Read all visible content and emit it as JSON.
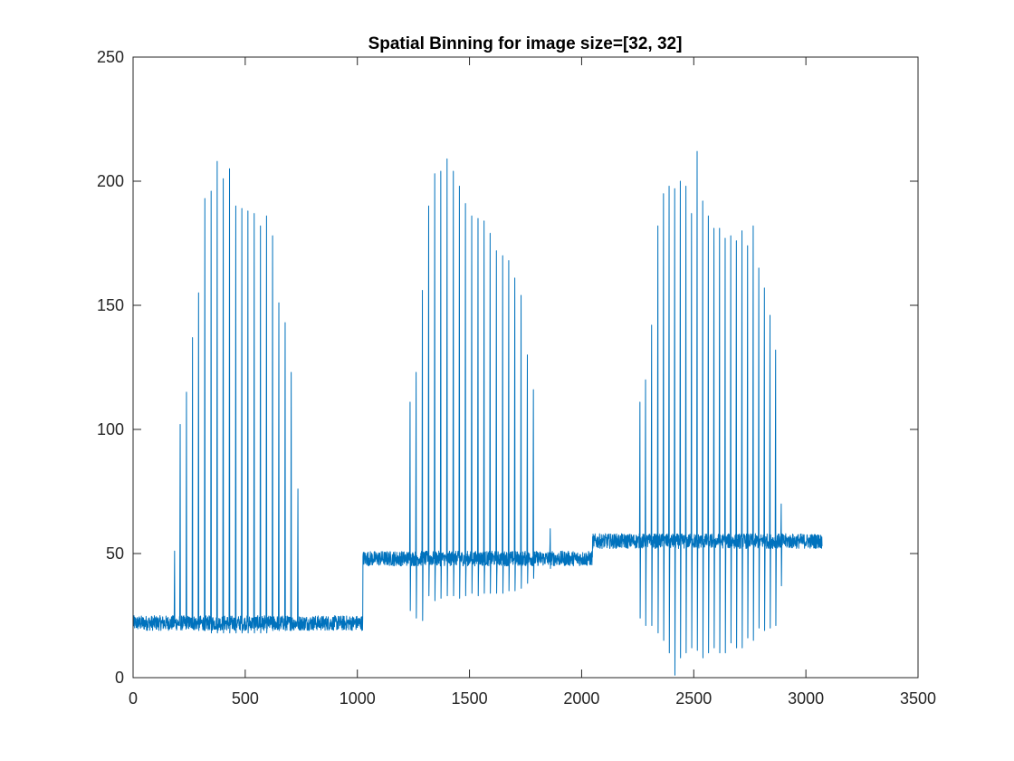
{
  "chart_data": {
    "type": "line",
    "title": "Spatial Binning for image size=[32, 32]",
    "xlabel": "",
    "ylabel": "",
    "xlim": [
      0,
      3500
    ],
    "ylim": [
      0,
      250
    ],
    "xticks": [
      0,
      500,
      1000,
      1500,
      2000,
      2500,
      3000,
      3500
    ],
    "yticks": [
      0,
      50,
      100,
      150,
      200,
      250
    ],
    "xtick_labels": [
      "0",
      "500",
      "1000",
      "1500",
      "2000",
      "2500",
      "3000",
      "3500"
    ],
    "ytick_labels": [
      "0",
      "50",
      "100",
      "150",
      "200",
      "250"
    ],
    "grid": false,
    "legend": "none",
    "colors": {
      "series": "#0072BD",
      "axes": "#262626",
      "background": "#ffffff"
    },
    "series": [
      {
        "color": "#0072BD",
        "x_range": [
          1,
          3072
        ],
        "segments": [
          {
            "x_start": 1,
            "x_end": 1024,
            "baseline": 22,
            "noise": 3,
            "spikes": [
              {
                "x": 185,
                "peak": 51,
                "trough": 22
              },
              {
                "x": 210,
                "peak": 102,
                "trough": 21
              },
              {
                "x": 238,
                "peak": 115,
                "trough": 20
              },
              {
                "x": 265,
                "peak": 137,
                "trough": 20
              },
              {
                "x": 292,
                "peak": 155,
                "trough": 19
              },
              {
                "x": 320,
                "peak": 193,
                "trough": 19
              },
              {
                "x": 348,
                "peak": 196,
                "trough": 18
              },
              {
                "x": 375,
                "peak": 208,
                "trough": 18
              },
              {
                "x": 402,
                "peak": 201,
                "trough": 18
              },
              {
                "x": 430,
                "peak": 205,
                "trough": 18
              },
              {
                "x": 458,
                "peak": 190,
                "trough": 18
              },
              {
                "x": 485,
                "peak": 189,
                "trough": 18
              },
              {
                "x": 512,
                "peak": 188,
                "trough": 18
              },
              {
                "x": 540,
                "peak": 187,
                "trough": 18
              },
              {
                "x": 568,
                "peak": 182,
                "trough": 18
              },
              {
                "x": 595,
                "peak": 186,
                "trough": 18
              },
              {
                "x": 622,
                "peak": 178,
                "trough": 19
              },
              {
                "x": 650,
                "peak": 151,
                "trough": 19
              },
              {
                "x": 678,
                "peak": 143,
                "trough": 19
              },
              {
                "x": 705,
                "peak": 123,
                "trough": 19
              },
              {
                "x": 735,
                "peak": 76,
                "trough": 20
              }
            ]
          },
          {
            "x_start": 1025,
            "x_end": 2048,
            "baseline": 48,
            "noise": 3,
            "spikes": [
              {
                "x": 1235,
                "peak": 111,
                "trough": 27
              },
              {
                "x": 1262,
                "peak": 123,
                "trough": 24
              },
              {
                "x": 1290,
                "peak": 156,
                "trough": 23
              },
              {
                "x": 1318,
                "peak": 190,
                "trough": 33
              },
              {
                "x": 1345,
                "peak": 203,
                "trough": 31
              },
              {
                "x": 1372,
                "peak": 204,
                "trough": 32
              },
              {
                "x": 1400,
                "peak": 209,
                "trough": 33
              },
              {
                "x": 1428,
                "peak": 204,
                "trough": 33
              },
              {
                "x": 1455,
                "peak": 198,
                "trough": 32
              },
              {
                "x": 1482,
                "peak": 191,
                "trough": 33
              },
              {
                "x": 1510,
                "peak": 186,
                "trough": 34
              },
              {
                "x": 1538,
                "peak": 185,
                "trough": 33
              },
              {
                "x": 1565,
                "peak": 184,
                "trough": 34
              },
              {
                "x": 1592,
                "peak": 179,
                "trough": 34
              },
              {
                "x": 1620,
                "peak": 172,
                "trough": 34
              },
              {
                "x": 1648,
                "peak": 170,
                "trough": 34
              },
              {
                "x": 1675,
                "peak": 168,
                "trough": 35
              },
              {
                "x": 1702,
                "peak": 161,
                "trough": 35
              },
              {
                "x": 1730,
                "peak": 154,
                "trough": 36
              },
              {
                "x": 1758,
                "peak": 130,
                "trough": 38
              },
              {
                "x": 1785,
                "peak": 116,
                "trough": 40
              },
              {
                "x": 1860,
                "peak": 60,
                "trough": 44
              }
            ]
          },
          {
            "x_start": 2049,
            "x_end": 3072,
            "baseline": 55,
            "noise": 3,
            "spikes": [
              {
                "x": 2260,
                "peak": 111,
                "trough": 24
              },
              {
                "x": 2285,
                "peak": 120,
                "trough": 21
              },
              {
                "x": 2312,
                "peak": 142,
                "trough": 21
              },
              {
                "x": 2340,
                "peak": 182,
                "trough": 18
              },
              {
                "x": 2365,
                "peak": 195,
                "trough": 15
              },
              {
                "x": 2390,
                "peak": 198,
                "trough": 10
              },
              {
                "x": 2415,
                "peak": 197,
                "trough": 1
              },
              {
                "x": 2440,
                "peak": 200,
                "trough": 8
              },
              {
                "x": 2465,
                "peak": 198,
                "trough": 10
              },
              {
                "x": 2490,
                "peak": 187,
                "trough": 12
              },
              {
                "x": 2515,
                "peak": 212,
                "trough": 11
              },
              {
                "x": 2540,
                "peak": 192,
                "trough": 8
              },
              {
                "x": 2565,
                "peak": 186,
                "trough": 10
              },
              {
                "x": 2590,
                "peak": 181,
                "trough": 12
              },
              {
                "x": 2615,
                "peak": 181,
                "trough": 10
              },
              {
                "x": 2640,
                "peak": 177,
                "trough": 10
              },
              {
                "x": 2665,
                "peak": 178,
                "trough": 14
              },
              {
                "x": 2690,
                "peak": 176,
                "trough": 12
              },
              {
                "x": 2715,
                "peak": 180,
                "trough": 12
              },
              {
                "x": 2740,
                "peak": 174,
                "trough": 16
              },
              {
                "x": 2765,
                "peak": 182,
                "trough": 15
              },
              {
                "x": 2790,
                "peak": 165,
                "trough": 20
              },
              {
                "x": 2815,
                "peak": 157,
                "trough": 19
              },
              {
                "x": 2840,
                "peak": 146,
                "trough": 20
              },
              {
                "x": 2865,
                "peak": 132,
                "trough": 21
              },
              {
                "x": 2890,
                "peak": 70,
                "trough": 37
              }
            ]
          }
        ]
      }
    ]
  }
}
